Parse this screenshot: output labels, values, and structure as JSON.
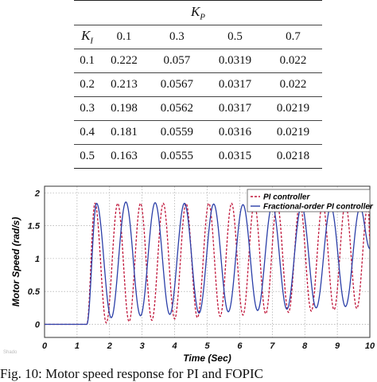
{
  "table": {
    "kp_header": "K",
    "kp_sub": "P",
    "ki_header": "K",
    "ki_sub": "I",
    "kp_values": [
      "0.1",
      "0.3",
      "0.5",
      "0.7"
    ],
    "rows": [
      {
        "ki": "0.1",
        "cells": [
          "0.222",
          "0.057",
          "0.0319",
          "0.022"
        ]
      },
      {
        "ki": "0.2",
        "cells": [
          "0.213",
          "0.0567",
          "0.0317",
          "0.022"
        ]
      },
      {
        "ki": "0.3",
        "cells": [
          "0.198",
          "0.0562",
          "0.0317",
          "0.0219"
        ]
      },
      {
        "ki": "0.4",
        "cells": [
          "0.181",
          "0.0559",
          "0.0316",
          "0.0219"
        ]
      },
      {
        "ki": "0.5",
        "cells": [
          "0.163",
          "0.0555",
          "0.0315",
          "0.0218"
        ]
      }
    ]
  },
  "watermark": "Shado",
  "caption": "Fig. 10: Motor speed response for PI and FOPIC",
  "chart_data": {
    "type": "line",
    "xlabel": "Time (Sec)",
    "ylabel": "Motor Speed (rad/s)",
    "xlim": [
      0,
      10
    ],
    "ylim": [
      -0.2,
      2.1
    ],
    "xticks": [
      "0",
      "1",
      "2",
      "3",
      "4",
      "5",
      "6",
      "7",
      "8",
      "9",
      "10"
    ],
    "yticks": [
      "0",
      "0.5",
      "1",
      "1.5",
      "2"
    ],
    "grid": true,
    "legend_position": "top-right",
    "series": [
      {
        "name": "PI controller",
        "color": "#c0163a",
        "style": "dashed",
        "x": [
          0,
          1.3,
          1.55,
          1.9,
          2.25,
          2.6,
          2.95,
          3.3,
          3.65,
          4.0,
          4.35,
          4.7,
          5.05,
          5.4,
          5.75,
          6.1,
          6.45,
          6.8,
          7.15,
          7.5,
          7.85,
          8.2,
          8.55,
          8.9,
          9.25,
          9.6,
          9.95,
          10
        ],
        "y": [
          0,
          0,
          1.84,
          0.02,
          1.84,
          0.04,
          1.84,
          0.06,
          1.84,
          0.08,
          1.84,
          0.1,
          1.84,
          0.12,
          1.84,
          0.14,
          1.84,
          0.16,
          1.84,
          0.18,
          1.84,
          0.2,
          1.84,
          0.22,
          1.84,
          0.24,
          1.84,
          1.3
        ]
      },
      {
        "name": "Fractional-order PI controller",
        "color": "#2b3fa8",
        "style": "solid",
        "x": [
          0,
          1.3,
          1.6,
          2.05,
          2.5,
          2.95,
          3.4,
          3.85,
          4.3,
          4.75,
          5.2,
          5.65,
          6.1,
          6.55,
          7.0,
          7.45,
          7.9,
          8.35,
          8.8,
          9.25,
          9.7,
          10
        ],
        "y": [
          0,
          0,
          1.84,
          0.1,
          1.86,
          0.13,
          1.85,
          0.15,
          1.84,
          0.17,
          1.83,
          0.19,
          1.82,
          0.21,
          1.81,
          0.23,
          1.8,
          0.25,
          1.79,
          0.27,
          1.78,
          1.15
        ]
      }
    ]
  }
}
